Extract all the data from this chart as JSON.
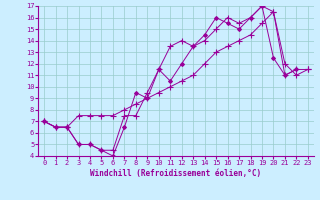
{
  "xlabel": "Windchill (Refroidissement éolien,°C)",
  "bg_color": "#cceeff",
  "line_color": "#990099",
  "grid_color": "#99cccc",
  "xlim": [
    -0.5,
    23.5
  ],
  "ylim": [
    4,
    17
  ],
  "xticks": [
    0,
    1,
    2,
    3,
    4,
    5,
    6,
    7,
    8,
    9,
    10,
    11,
    12,
    13,
    14,
    15,
    16,
    17,
    18,
    19,
    20,
    21,
    22,
    23
  ],
  "yticks": [
    4,
    5,
    6,
    7,
    8,
    9,
    10,
    11,
    12,
    13,
    14,
    15,
    16,
    17
  ],
  "series": [
    {
      "x": [
        0,
        1,
        2,
        3,
        4,
        5,
        6,
        7,
        8,
        9,
        10,
        11,
        12,
        13,
        14,
        15,
        16,
        17,
        18,
        19,
        20,
        21,
        22,
        23
      ],
      "y": [
        7,
        6.5,
        6.5,
        7.5,
        7.5,
        7.5,
        7.5,
        8,
        8.5,
        9,
        9.5,
        10,
        10.5,
        11,
        12,
        13,
        13.5,
        14,
        14.5,
        15.5,
        16.5,
        11,
        11.5,
        11.5
      ]
    },
    {
      "x": [
        0,
        1,
        2,
        3,
        4,
        5,
        6,
        7,
        8,
        9,
        10,
        11,
        12,
        13,
        14,
        15,
        16,
        17,
        18,
        19,
        20,
        21,
        22
      ],
      "y": [
        7,
        6.5,
        6.5,
        5,
        5,
        4.5,
        4,
        6.5,
        9.5,
        9,
        11.5,
        10.5,
        12,
        13.5,
        14.5,
        16,
        15.5,
        15,
        16,
        17,
        12.5,
        11,
        11.5
      ]
    },
    {
      "x": [
        0,
        1,
        2,
        3,
        4,
        5,
        6,
        7,
        8,
        9,
        10,
        11,
        12,
        13,
        14,
        15,
        16,
        17,
        18,
        19,
        20,
        21,
        22,
        23
      ],
      "y": [
        7,
        6.5,
        6.5,
        5,
        5,
        4.5,
        4.5,
        7.5,
        7.5,
        9.5,
        11.5,
        13.5,
        14,
        13.5,
        14,
        15,
        16,
        15.5,
        16,
        17,
        16.5,
        12,
        11,
        11.5
      ]
    }
  ]
}
